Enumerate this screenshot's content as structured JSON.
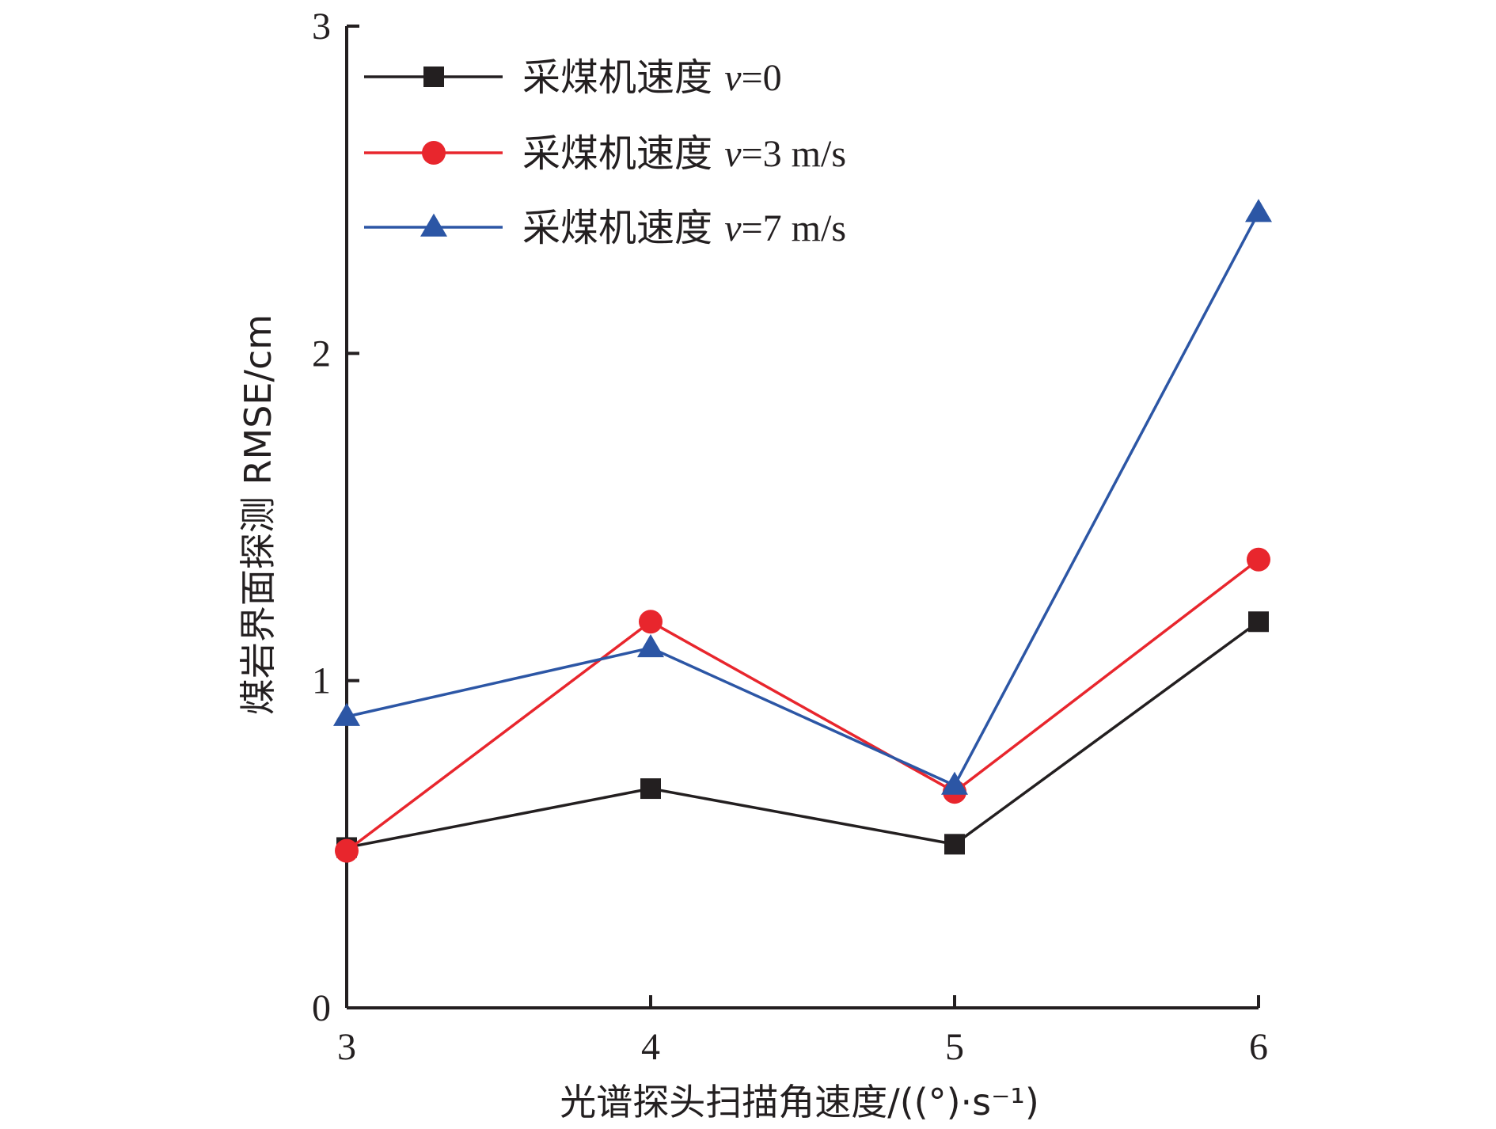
{
  "chart_data": {
    "type": "line",
    "x": [
      3,
      4,
      5,
      6
    ],
    "xlim": [
      3,
      6
    ],
    "ylim": [
      0,
      3
    ],
    "xticks": [
      "3",
      "4",
      "5",
      "6"
    ],
    "yticks": [
      "0",
      "1",
      "2",
      "3"
    ],
    "xlabel": "光谱探头扫描角速度/((°)·s⁻¹)",
    "ylabel": "煤岩界面探测 RMSE/cm",
    "grid": false,
    "legend_position": "top-left",
    "series": [
      {
        "name": "采煤机速度 v=0",
        "name_prefix": "采煤机速度 ",
        "name_var": "v",
        "name_suffix": "=0",
        "color": "#231f20",
        "marker": "square",
        "values": [
          0.49,
          0.67,
          0.5,
          1.18
        ]
      },
      {
        "name": "采煤机速度 v=3 m/s",
        "name_prefix": "采煤机速度 ",
        "name_var": "v",
        "name_suffix": "=3 m/s",
        "color": "#e8262d",
        "marker": "circle",
        "values": [
          0.48,
          1.18,
          0.66,
          1.37
        ]
      },
      {
        "name": "采煤机速度 v=7 m/s",
        "name_prefix": "采煤机速度 ",
        "name_var": "v",
        "name_suffix": "=7 m/s",
        "color": "#2c56a5",
        "marker": "triangle",
        "values": [
          0.89,
          1.1,
          0.68,
          2.43
        ]
      }
    ]
  }
}
